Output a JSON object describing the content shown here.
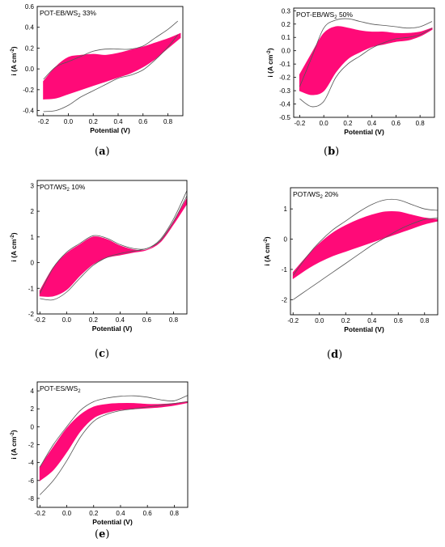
{
  "chart_data": [
    {
      "id": "a",
      "type": "line",
      "caption": "a",
      "label_main": "POT-EB/WS",
      "label_sub": "2",
      "label_tail": " 33%",
      "xlabel": "Potential (V)",
      "ylabel": "i (A cm",
      "ylabel_sup": "-2",
      "ylabel_tail": ")",
      "xlim": [
        -0.25,
        0.92
      ],
      "ylim": [
        -0.45,
        0.6
      ],
      "xticks": [
        -0.2,
        0.0,
        0.2,
        0.4,
        0.6,
        0.8
      ],
      "yticks": [
        -0.4,
        -0.2,
        0.0,
        0.2,
        0.4,
        0.6
      ],
      "xtick_labels": [
        "-0.2",
        "0.0",
        "0.2",
        "0.4",
        "0.6",
        "0.8"
      ],
      "ytick_labels": [
        "-0.4",
        "-0.2",
        "0.0",
        "0.2",
        "0.4",
        "0.6"
      ],
      "outer_upper": [
        [
          -0.2,
          -0.1
        ],
        [
          -0.1,
          0.02
        ],
        [
          0.0,
          0.07
        ],
        [
          0.1,
          0.12
        ],
        [
          0.2,
          0.17
        ],
        [
          0.3,
          0.19
        ],
        [
          0.4,
          0.19
        ],
        [
          0.5,
          0.19
        ],
        [
          0.6,
          0.22
        ],
        [
          0.7,
          0.3
        ],
        [
          0.8,
          0.38
        ],
        [
          0.88,
          0.46
        ]
      ],
      "outer_lower": [
        [
          -0.2,
          -0.41
        ],
        [
          -0.1,
          -0.4
        ],
        [
          0.0,
          -0.35
        ],
        [
          0.1,
          -0.27
        ],
        [
          0.2,
          -0.21
        ],
        [
          0.3,
          -0.15
        ],
        [
          0.4,
          -0.09
        ],
        [
          0.5,
          -0.06
        ],
        [
          0.6,
          -0.01
        ],
        [
          0.7,
          0.09
        ],
        [
          0.8,
          0.21
        ],
        [
          0.88,
          0.33
        ]
      ],
      "fill_upper": [
        [
          -0.2,
          -0.12
        ],
        [
          -0.1,
          0.02
        ],
        [
          0.0,
          0.11
        ],
        [
          0.1,
          0.13
        ],
        [
          0.2,
          0.14
        ],
        [
          0.3,
          0.13
        ],
        [
          0.4,
          0.15
        ],
        [
          0.5,
          0.18
        ],
        [
          0.6,
          0.21
        ],
        [
          0.7,
          0.25
        ],
        [
          0.8,
          0.29
        ],
        [
          0.9,
          0.34
        ]
      ],
      "fill_lower": [
        [
          -0.2,
          -0.29
        ],
        [
          -0.1,
          -0.28
        ],
        [
          0.0,
          -0.24
        ],
        [
          0.1,
          -0.2
        ],
        [
          0.2,
          -0.16
        ],
        [
          0.3,
          -0.12
        ],
        [
          0.4,
          -0.08
        ],
        [
          0.5,
          -0.04
        ],
        [
          0.6,
          0.02
        ],
        [
          0.7,
          0.1
        ],
        [
          0.8,
          0.2
        ],
        [
          0.9,
          0.3
        ]
      ]
    },
    {
      "id": "b",
      "type": "line",
      "caption": "b",
      "label_main": "POT-EB/WS",
      "label_sub": "2",
      "label_tail": " 50%",
      "xlabel": "Potential (V)",
      "ylabel": "i (A cm",
      "ylabel_sup": "-2",
      "ylabel_tail": ")",
      "xlim": [
        -0.25,
        0.92
      ],
      "ylim": [
        -0.5,
        0.32
      ],
      "xticks": [
        -0.2,
        0.0,
        0.2,
        0.4,
        0.6,
        0.8
      ],
      "yticks": [
        -0.5,
        -0.4,
        -0.3,
        -0.2,
        -0.1,
        0.0,
        0.1,
        0.2,
        0.3
      ],
      "xtick_labels": [
        "-0.2",
        "0.0",
        "0.2",
        "0.4",
        "0.6",
        "0.8"
      ],
      "ytick_labels": [
        "-0.5",
        "-0.4",
        "-0.3",
        "-0.2",
        "-0.1",
        "0.0",
        "0.1",
        "0.2",
        "0.3"
      ],
      "outer_upper": [
        [
          -0.2,
          -0.27
        ],
        [
          -0.1,
          -0.05
        ],
        [
          0.0,
          0.17
        ],
        [
          0.1,
          0.23
        ],
        [
          0.2,
          0.24
        ],
        [
          0.3,
          0.22
        ],
        [
          0.4,
          0.2
        ],
        [
          0.5,
          0.19
        ],
        [
          0.6,
          0.18
        ],
        [
          0.7,
          0.17
        ],
        [
          0.8,
          0.18
        ],
        [
          0.9,
          0.22
        ]
      ],
      "outer_lower": [
        [
          -0.2,
          -0.36
        ],
        [
          -0.1,
          -0.42
        ],
        [
          0.0,
          -0.38
        ],
        [
          0.1,
          -0.2
        ],
        [
          0.2,
          -0.1
        ],
        [
          0.3,
          -0.04
        ],
        [
          0.4,
          0.02
        ],
        [
          0.5,
          0.06
        ],
        [
          0.6,
          0.09
        ],
        [
          0.7,
          0.1
        ],
        [
          0.8,
          0.12
        ],
        [
          0.9,
          0.17
        ]
      ],
      "fill_upper": [
        [
          -0.2,
          -0.18
        ],
        [
          -0.1,
          -0.02
        ],
        [
          0.0,
          0.13
        ],
        [
          0.1,
          0.18
        ],
        [
          0.2,
          0.17
        ],
        [
          0.3,
          0.15
        ],
        [
          0.4,
          0.14
        ],
        [
          0.5,
          0.14
        ],
        [
          0.6,
          0.13
        ],
        [
          0.7,
          0.13
        ],
        [
          0.8,
          0.14
        ],
        [
          0.9,
          0.17
        ]
      ],
      "fill_lower": [
        [
          -0.2,
          -0.3
        ],
        [
          -0.1,
          -0.33
        ],
        [
          0.0,
          -0.3
        ],
        [
          0.1,
          -0.16
        ],
        [
          0.2,
          -0.06
        ],
        [
          0.3,
          -0.01
        ],
        [
          0.4,
          0.03
        ],
        [
          0.5,
          0.05
        ],
        [
          0.6,
          0.07
        ],
        [
          0.7,
          0.08
        ],
        [
          0.8,
          0.11
        ],
        [
          0.9,
          0.16
        ]
      ]
    },
    {
      "id": "c",
      "type": "line",
      "caption": "c",
      "label_main": "POT/WS",
      "label_sub": "2",
      "label_tail": " 10%",
      "xlabel": "Potential (V)",
      "ylabel": "i (A cm",
      "ylabel_sup": "-2",
      "ylabel_tail": ")",
      "xlim": [
        -0.22,
        0.9
      ],
      "ylim": [
        -2,
        3.2
      ],
      "xticks": [
        -0.2,
        0.0,
        0.2,
        0.4,
        0.6,
        0.8
      ],
      "yticks": [
        -2,
        -1,
        0,
        1,
        2,
        3
      ],
      "xtick_labels": [
        "-0.2",
        "0.0",
        "0.2",
        "0.4",
        "0.6",
        "0.8"
      ],
      "ytick_labels": [
        "-2",
        "-1",
        "0",
        "1",
        "2",
        "3"
      ],
      "outer_upper": [
        [
          -0.2,
          -1.2
        ],
        [
          -0.1,
          -0.2
        ],
        [
          0.0,
          0.4
        ],
        [
          0.1,
          0.75
        ],
        [
          0.2,
          1.05
        ],
        [
          0.3,
          0.95
        ],
        [
          0.4,
          0.7
        ],
        [
          0.5,
          0.55
        ],
        [
          0.6,
          0.55
        ],
        [
          0.7,
          0.9
        ],
        [
          0.8,
          1.7
        ],
        [
          0.9,
          2.8
        ]
      ],
      "outer_lower": [
        [
          -0.2,
          -1.4
        ],
        [
          -0.1,
          -1.45
        ],
        [
          0.0,
          -1.15
        ],
        [
          0.1,
          -0.6
        ],
        [
          0.2,
          -0.1
        ],
        [
          0.3,
          0.2
        ],
        [
          0.4,
          0.35
        ],
        [
          0.5,
          0.45
        ],
        [
          0.6,
          0.55
        ],
        [
          0.7,
          0.85
        ],
        [
          0.8,
          1.6
        ],
        [
          0.9,
          2.6
        ]
      ],
      "fill_upper": [
        [
          -0.2,
          -1.1
        ],
        [
          -0.1,
          -0.2
        ],
        [
          0.0,
          0.35
        ],
        [
          0.1,
          0.7
        ],
        [
          0.2,
          1.0
        ],
        [
          0.3,
          0.9
        ],
        [
          0.4,
          0.65
        ],
        [
          0.5,
          0.5
        ],
        [
          0.6,
          0.5
        ],
        [
          0.7,
          0.85
        ],
        [
          0.8,
          1.6
        ],
        [
          0.9,
          2.5
        ]
      ],
      "fill_lower": [
        [
          -0.2,
          -1.3
        ],
        [
          -0.1,
          -1.3
        ],
        [
          0.0,
          -1.05
        ],
        [
          0.1,
          -0.5
        ],
        [
          0.2,
          -0.05
        ],
        [
          0.3,
          0.2
        ],
        [
          0.4,
          0.3
        ],
        [
          0.5,
          0.4
        ],
        [
          0.6,
          0.5
        ],
        [
          0.7,
          0.8
        ],
        [
          0.8,
          1.5
        ],
        [
          0.9,
          2.3
        ]
      ]
    },
    {
      "id": "d",
      "type": "line",
      "caption": "d",
      "label_main": "POT/WS",
      "label_sub": "2",
      "label_tail": " 20%",
      "xlabel": "Potential (V)",
      "ylabel": "i (A cm",
      "ylabel_sup": "-2",
      "ylabel_tail": ")",
      "xlim": [
        -0.22,
        0.9
      ],
      "ylim": [
        -2.5,
        1.7
      ],
      "xticks": [
        -0.2,
        0.0,
        0.2,
        0.4,
        0.6,
        0.8
      ],
      "yticks": [
        -2,
        -1,
        0,
        1
      ],
      "xtick_labels": [
        "-0.2",
        "0.0",
        "0.2",
        "0.4",
        "0.6",
        "0.8"
      ],
      "ytick_labels": [
        "-2",
        "-1",
        "0",
        "1"
      ],
      "outer_upper": [
        [
          -0.2,
          -1.2
        ],
        [
          -0.1,
          -0.6
        ],
        [
          0.0,
          -0.1
        ],
        [
          0.1,
          0.3
        ],
        [
          0.2,
          0.6
        ],
        [
          0.3,
          0.9
        ],
        [
          0.4,
          1.15
        ],
        [
          0.5,
          1.3
        ],
        [
          0.6,
          1.3
        ],
        [
          0.7,
          1.15
        ],
        [
          0.8,
          1.0
        ],
        [
          0.9,
          0.95
        ]
      ],
      "outer_lower": [
        [
          -0.2,
          -2.0
        ],
        [
          -0.1,
          -1.7
        ],
        [
          0.0,
          -1.4
        ],
        [
          0.1,
          -1.1
        ],
        [
          0.2,
          -0.8
        ],
        [
          0.3,
          -0.5
        ],
        [
          0.4,
          -0.2
        ],
        [
          0.5,
          0.05
        ],
        [
          0.6,
          0.3
        ],
        [
          0.7,
          0.5
        ],
        [
          0.8,
          0.65
        ],
        [
          0.9,
          0.7
        ]
      ],
      "fill_upper": [
        [
          -0.2,
          -1.1
        ],
        [
          -0.1,
          -0.6
        ],
        [
          0.0,
          -0.15
        ],
        [
          0.1,
          0.2
        ],
        [
          0.2,
          0.45
        ],
        [
          0.3,
          0.65
        ],
        [
          0.4,
          0.8
        ],
        [
          0.5,
          0.9
        ],
        [
          0.6,
          0.9
        ],
        [
          0.7,
          0.8
        ],
        [
          0.8,
          0.7
        ],
        [
          0.9,
          0.65
        ]
      ],
      "fill_lower": [
        [
          -0.2,
          -1.3
        ],
        [
          -0.1,
          -1.0
        ],
        [
          0.0,
          -0.75
        ],
        [
          0.1,
          -0.55
        ],
        [
          0.2,
          -0.4
        ],
        [
          0.3,
          -0.25
        ],
        [
          0.4,
          -0.1
        ],
        [
          0.5,
          0.05
        ],
        [
          0.6,
          0.2
        ],
        [
          0.7,
          0.35
        ],
        [
          0.8,
          0.5
        ],
        [
          0.9,
          0.6
        ]
      ]
    },
    {
      "id": "e",
      "type": "line",
      "caption": "e",
      "label_main": "POT-ES/WS",
      "label_sub": "2",
      "label_tail": "",
      "xlabel": "Potential (V)",
      "ylabel": "i (A cm",
      "ylabel_sup": "-2",
      "ylabel_tail": ")",
      "xlim": [
        -0.22,
        0.9
      ],
      "ylim": [
        -9,
        5
      ],
      "xticks": [
        -0.2,
        0.0,
        0.2,
        0.4,
        0.6,
        0.8
      ],
      "yticks": [
        -8,
        -6,
        -4,
        -2,
        0,
        2,
        4
      ],
      "xtick_labels": [
        "-0.2",
        "0.0",
        "0.2",
        "0.4",
        "0.6",
        "0.8"
      ],
      "ytick_labels": [
        "-8",
        "-6",
        "-4",
        "-2",
        "0",
        "2",
        "4"
      ],
      "outer_upper": [
        [
          -0.2,
          -4.5
        ],
        [
          -0.1,
          -2.0
        ],
        [
          0.0,
          0.0
        ],
        [
          0.1,
          1.8
        ],
        [
          0.2,
          2.8
        ],
        [
          0.3,
          3.2
        ],
        [
          0.4,
          3.4
        ],
        [
          0.5,
          3.45
        ],
        [
          0.6,
          3.3
        ],
        [
          0.7,
          3.0
        ],
        [
          0.8,
          2.9
        ],
        [
          0.9,
          3.5
        ]
      ],
      "outer_lower": [
        [
          -0.2,
          -7.6
        ],
        [
          -0.1,
          -6.0
        ],
        [
          0.0,
          -3.8
        ],
        [
          0.1,
          -1.2
        ],
        [
          0.2,
          0.6
        ],
        [
          0.3,
          1.4
        ],
        [
          0.4,
          1.8
        ],
        [
          0.5,
          2.0
        ],
        [
          0.6,
          2.2
        ],
        [
          0.7,
          2.4
        ],
        [
          0.8,
          2.6
        ],
        [
          0.9,
          2.8
        ]
      ],
      "fill_upper": [
        [
          -0.2,
          -4.5
        ],
        [
          -0.1,
          -2.3
        ],
        [
          0.0,
          -0.2
        ],
        [
          0.1,
          1.3
        ],
        [
          0.2,
          2.2
        ],
        [
          0.3,
          2.5
        ],
        [
          0.4,
          2.6
        ],
        [
          0.5,
          2.6
        ],
        [
          0.6,
          2.5
        ],
        [
          0.7,
          2.5
        ],
        [
          0.8,
          2.6
        ],
        [
          0.9,
          2.8
        ]
      ],
      "fill_lower": [
        [
          -0.2,
          -6.0
        ],
        [
          -0.1,
          -4.8
        ],
        [
          0.0,
          -2.8
        ],
        [
          0.1,
          -0.5
        ],
        [
          0.2,
          1.0
        ],
        [
          0.3,
          1.6
        ],
        [
          0.4,
          1.9
        ],
        [
          0.5,
          2.0
        ],
        [
          0.6,
          2.1
        ],
        [
          0.7,
          2.2
        ],
        [
          0.8,
          2.4
        ],
        [
          0.9,
          2.7
        ]
      ]
    }
  ],
  "colors": {
    "fill": "#ff0a78",
    "outline": "#555555",
    "axis": "#000000"
  }
}
